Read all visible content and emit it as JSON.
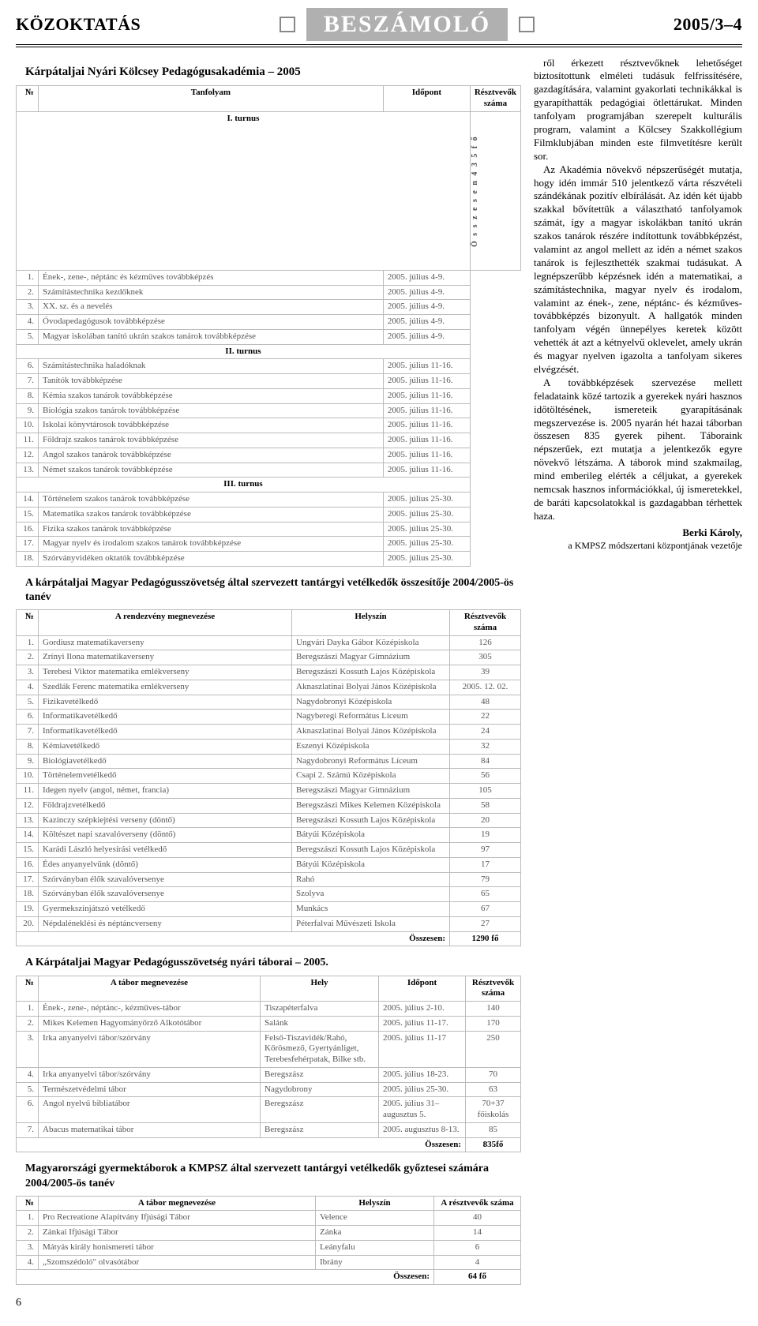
{
  "header": {
    "left": "KÖZOKTATÁS",
    "center": "BESZÁMOLÓ",
    "right": "2005/3–4"
  },
  "titles": {
    "t1": "Kárpátaljai Nyári Kölcsey Pedagógusakadémia – 2005",
    "t2": "A kárpátaljai Magyar Pedagógusszövetség által szervezett tantárgyi vetélkedők összesítője 2004/2005-ös tanév",
    "t3": "A Kárpátaljai Magyar Pedagógusszövetség nyári táborai – 2005.",
    "t4": "Magyarországi gyermektáborok a KMPSZ által szervezett tantárgyi vetélkedők győztesei számára 2004/2005-ös tanév"
  },
  "table1": {
    "headers": [
      "№",
      "Tanfolyam",
      "Időpont",
      "Résztvevők száma"
    ],
    "section1": "I. turnus",
    "rows1": [
      [
        "1.",
        "Ének-, zene-, néptánc és kézműves továbbképzés",
        "2005. július 4-9."
      ],
      [
        "2.",
        "Számítástechnika kezdőknek",
        "2005. július 4-9."
      ],
      [
        "3.",
        "XX. sz. és a nevelés",
        "2005. július 4-9."
      ],
      [
        "4.",
        "Óvodapedagógusok továbbképzése",
        "2005. július 4-9."
      ],
      [
        "5.",
        "Magyar iskolában tanító ukrán szakos tanárok továbbképzése",
        "2005. július 4-9."
      ]
    ],
    "section2": "II. turnus",
    "rows2": [
      [
        "6.",
        "Számítástechnika haladóknak",
        "2005. július 11-16."
      ],
      [
        "7.",
        "Tanítók továbbképzése",
        "2005. július 11-16."
      ],
      [
        "8.",
        "Kémia szakos tanárok továbbképzése",
        "2005. július 11-16."
      ],
      [
        "9.",
        "Biológia szakos tanárok továbbképzése",
        "2005. július 11-16."
      ],
      [
        "10.",
        "Iskolai könyvtárosok továbbképzése",
        "2005. július 11-16."
      ],
      [
        "11.",
        "Földrajz szakos tanárok továbbképzése",
        "2005. július 11-16."
      ],
      [
        "12.",
        "Angol szakos tanárok továbbképzése",
        "2005. július 11-16."
      ],
      [
        "13.",
        "Német szakos tanárok továbbképzése",
        "2005. július 11-16."
      ]
    ],
    "section3": "III. turnus",
    "rows3": [
      [
        "14.",
        "Történelem szakos tanárok továbbképzése",
        "2005. július 25-30."
      ],
      [
        "15.",
        "Matematika szakos tanárok továbbképzése",
        "2005. július 25-30."
      ],
      [
        "16.",
        "Fizika szakos tanárok továbbképzése",
        "2005. július 25-30."
      ],
      [
        "17.",
        "Magyar nyelv és irodalom szakos tanárok továbbképzése",
        "2005. július 25-30."
      ],
      [
        "18.",
        "Szórványvidéken oktatók továbbképzése",
        "2005. július 25-30."
      ]
    ],
    "vertical_text": "Ö s s z e s e n   4 3 5 f ő"
  },
  "table2": {
    "headers": [
      "№",
      "A rendezvény megnevezése",
      "Helyszín",
      "Résztvevők száma"
    ],
    "rows": [
      [
        "1.",
        "Gordiusz matematikaverseny",
        "Ungvári Dayka Gábor Középiskola",
        "126"
      ],
      [
        "2.",
        "Zrínyi Ilona matematikaverseny",
        "Beregszászi Magyar Gimnázium",
        "305"
      ],
      [
        "3.",
        "Terebesi Viktor matematika emlékverseny",
        "Beregszászi Kossuth Lajos Középiskola",
        "39"
      ],
      [
        "4.",
        "Szedlák Ferenc matematika emlékverseny",
        "Aknaszlatinai Bolyai János Középiskola",
        "2005. 12. 02."
      ],
      [
        "5.",
        "Fizikavetélkedő",
        "Nagydobronyi Középiskola",
        "48"
      ],
      [
        "6.",
        "Informatikavetélkedő",
        "Nagyberegi Református Líceum",
        "22"
      ],
      [
        "7.",
        "Informatikavetélkedő",
        "Aknaszlatinai Bolyai János Középiskola",
        "24"
      ],
      [
        "8.",
        "Kémiavetélkedő",
        "Eszenyi Középiskola",
        "32"
      ],
      [
        "9.",
        "Biológiavetélkedő",
        "Nagydobronyi Református Líceum",
        "84"
      ],
      [
        "10.",
        "Történelemvetélkedő",
        "Csapi 2. Számú Középiskola",
        "56"
      ],
      [
        "11.",
        "Idegen nyelv (angol, német, francia)",
        "Beregszászi Magyar Gimnázium",
        "105"
      ],
      [
        "12.",
        "Földrajzvetélkedő",
        "Beregszászi Mikes Kelemen Középiskola",
        "58"
      ],
      [
        "13.",
        "Kazinczy szépkiejtési verseny (döntő)",
        "Beregszászi Kossuth Lajos Középiskola",
        "20"
      ],
      [
        "14.",
        "Költészet napi szavalóverseny (döntő)",
        "Bátyúi Középiskola",
        "19"
      ],
      [
        "15.",
        "Karádi László helyesírási vetélkedő",
        "Beregszászi Kossuth Lajos Középiskola",
        "97"
      ],
      [
        "16.",
        "Édes anyanyelvünk (döntő)",
        "Bátyúi Középiskola",
        "17"
      ],
      [
        "17.",
        "Szórványban élők szavalóversenye",
        "Rahó",
        "79"
      ],
      [
        "18.",
        "Szórványban élők szavalóversenye",
        "Szolyva",
        "65"
      ],
      [
        "19.",
        "Gyermekszínjátszó vetélkedő",
        "Munkács",
        "67"
      ],
      [
        "20.",
        "Népdaléneklési és néptáncverseny",
        "Péterfalvai Művészeti Iskola",
        "27"
      ]
    ],
    "total_label": "Összesen:",
    "total_value": "1290 fő"
  },
  "table3": {
    "headers": [
      "№",
      "A tábor megnevezése",
      "Hely",
      "Időpont",
      "Résztvevők száma"
    ],
    "rows": [
      [
        "1.",
        "Ének-, zene-, néptánc-, kézműves-tábor",
        "Tiszapéterfalva",
        "2005. július 2-10.",
        "140"
      ],
      [
        "2.",
        "Mikes Kelemen Hagyományőrző Alkotótábor",
        "Salánk",
        "2005. július 11-17.",
        "170"
      ],
      [
        "3.",
        "Irka anyanyelvi tábor/szórvány",
        "Felső-Tiszavidék/Rahó, Kőrösmező, Gyertyánliget, Terebesfehérpatak, Bilke stb.",
        "2005. július 11-17",
        "250"
      ],
      [
        "4.",
        "Irka anyanyelvi tábor/szórvány",
        "Beregszász",
        "2005. július 18-23.",
        "70"
      ],
      [
        "5.",
        "Természetvédelmi tábor",
        "Nagydobrony",
        "2005. július 25-30.",
        "63"
      ],
      [
        "6.",
        "Angol nyelvű bibliatábor",
        "Beregszász",
        "2005. július 31– augusztus 5.",
        "70+37 főiskolás"
      ],
      [
        "7.",
        "Abacus matematikai tábor",
        "Beregszász",
        "2005. augusztus 8-13.",
        "85"
      ]
    ],
    "total_label": "Összesen:",
    "total_value": "835fő"
  },
  "table4": {
    "headers": [
      "№",
      "A tábor megnevezése",
      "Helyszín",
      "A résztvevők száma"
    ],
    "rows": [
      [
        "1.",
        "Pro Recreatione Alapítvány Ifjúsági Tábor",
        "Velence",
        "40"
      ],
      [
        "2.",
        "Zánkai Ifjúsági Tábor",
        "Zánka",
        "14"
      ],
      [
        "3.",
        "Mátyás király honismereti tábor",
        "Leányfalu",
        "6"
      ],
      [
        "4.",
        "„Szomszédoló\" olvasótábor",
        "Ibrány",
        "4"
      ]
    ],
    "total_label": "Összesen:",
    "total_value": "64 fő"
  },
  "article": {
    "p1": "ről érkezett résztvevőknek lehetőséget biztosítottunk elméleti tudásuk felfrissítésére, gazdagítására, valamint gyakorlati technikákkal is gyarapíthatták pedagógiai ötlettárukat. Minden tanfolyam programjában szerepelt kulturális program, valamint a Kölcsey Szakkollégium Filmklubjában minden este filmvetítésre került sor.",
    "p2": "Az Akadémia növekvő népszerűségét mutatja, hogy idén immár 510 jelentkező várta részvételi szándékának pozitív elbírálását. Az idén két újabb szakkal bővítettük a választható tanfolyamok számát, így a magyar iskolákban tanító ukrán szakos tanárok részére indítottunk továbbképzést, valamint az angol mellett az idén a német szakos tanárok is fejleszthették szakmai tudásukat. A legnépszerűbb képzésnek idén a matematikai, a számítástechnika, magyar nyelv és irodalom, valamint az ének-, zene, néptánc- és kézműves-továbbképzés bizonyult. A hallgatók minden tanfolyam végén ünnepélyes keretek között vehették át azt a kétnyelvű oklevelet, amely ukrán és magyar nyelven igazolta a tanfolyam sikeres elvégzését.",
    "p3": "A továbbképzések szervezése mellett feladataink közé tartozik a gyerekek nyári hasznos időtöltésének, ismereteik gyarapításának megszervezése is. 2005 nyarán hét hazai táborban összesen 835 gyerek pihent. Táboraink népszerűek, ezt mutatja a jelentkezők egyre növekvő létszáma. A táborok mind szakmailag, mind emberileg elérték a céljukat, a gyerekek nemcsak hasznos információkkal, új ismeretekkel, de baráti kapcsolatokkal is gazdagabban térhettek haza.",
    "sig1": "Berki Károly,",
    "sig2": "a KMPSZ módszertani központjának vezetője"
  },
  "page_number": "6"
}
